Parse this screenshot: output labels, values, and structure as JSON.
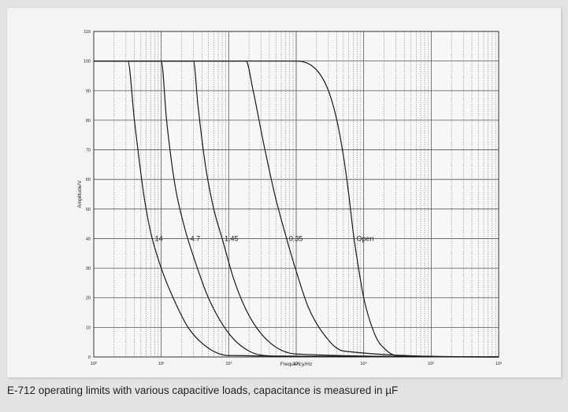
{
  "caption": "E-712 operating limits with various capacitive loads, capacitance is measured in µF",
  "chart_data": {
    "type": "line",
    "title": "",
    "xlabel": "Frequency/Hz",
    "ylabel": "Amplitude/V",
    "xscale": "log",
    "xlim": [
      1,
      1000000
    ],
    "ylim": [
      0,
      110
    ],
    "grid": true,
    "x_tick_labels": [
      "10⁰",
      "10¹",
      "10²",
      "10³",
      "10⁴",
      "10⁵",
      "10⁶"
    ],
    "y_tick_labels": [
      "0",
      "10",
      "20",
      "30",
      "40",
      "50",
      "60",
      "70",
      "80",
      "90",
      "100",
      "110"
    ],
    "series": [
      {
        "name": "14",
        "x": [
          1,
          3.2,
          4,
          5.5,
          7,
          10,
          15,
          25,
          50,
          100,
          1000000
        ],
        "y": [
          100,
          100,
          80,
          55,
          42,
          30,
          20,
          10,
          3,
          0.5,
          0
        ]
      },
      {
        "name": "4.7",
        "x": [
          1,
          10,
          12,
          16,
          22,
          31,
          50,
          100,
          200,
          500,
          1000000
        ],
        "y": [
          100,
          100,
          80,
          58,
          44,
          33,
          20,
          8,
          2,
          0.3,
          0
        ]
      },
      {
        "name": "1.45",
        "x": [
          1,
          30,
          35,
          45,
          60,
          80,
          120,
          200,
          400,
          1000,
          1000000
        ],
        "y": [
          100,
          100,
          85,
          65,
          50,
          40,
          26,
          14,
          5,
          1,
          0
        ]
      },
      {
        "name": "0.35",
        "x": [
          1,
          180,
          230,
          330,
          480,
          700,
          1000,
          1500,
          2500,
          5000,
          1000000
        ],
        "y": [
          100,
          100,
          90,
          72,
          55,
          41,
          29,
          17,
          8,
          2,
          0
        ]
      },
      {
        "name": "Open",
        "x": [
          1,
          1000,
          2000,
          3000,
          4000,
          5000,
          6000,
          7000,
          8000,
          10000,
          15000,
          20000,
          30000,
          1000000
        ],
        "y": [
          100,
          100,
          97,
          90,
          80,
          68,
          55,
          42,
          33,
          20,
          7,
          3,
          0.5,
          0
        ]
      }
    ]
  }
}
